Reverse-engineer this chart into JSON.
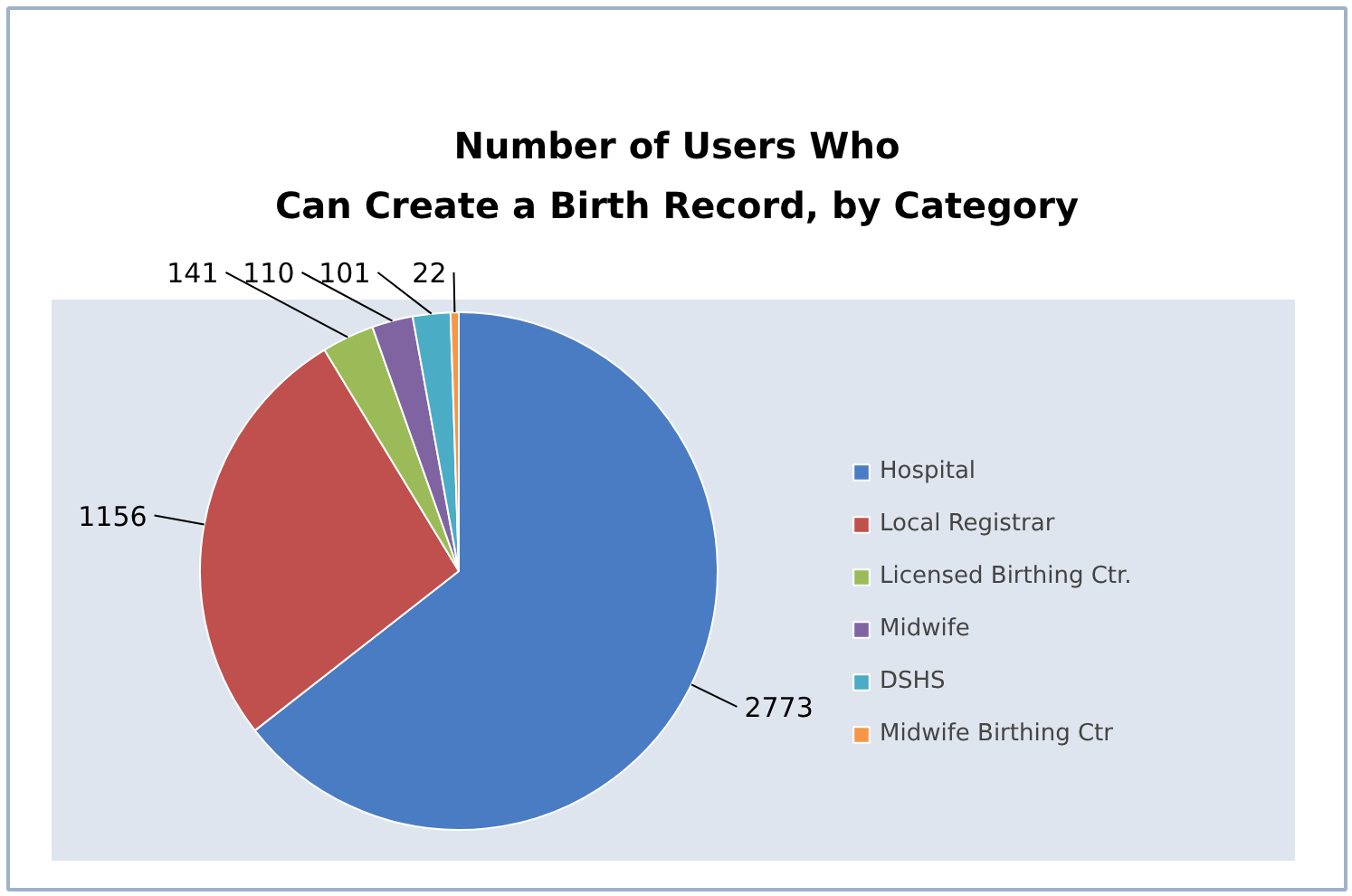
{
  "chart_data": {
    "type": "pie",
    "title": "Number of Users Who\nCan Create a Birth Record, by Category",
    "categories": [
      "Hospital",
      "Local Registrar",
      "Licensed Birthing Ctr.",
      "Midwife",
      "DSHS",
      "Midwife Birthing Ctr"
    ],
    "values": [
      2773,
      1156,
      141,
      110,
      101,
      22
    ],
    "colors": [
      "#4a7cc4",
      "#c0504d",
      "#9bbb59",
      "#8064a2",
      "#4bacc6",
      "#f79646"
    ],
    "data_labels": true,
    "legend": "right"
  }
}
